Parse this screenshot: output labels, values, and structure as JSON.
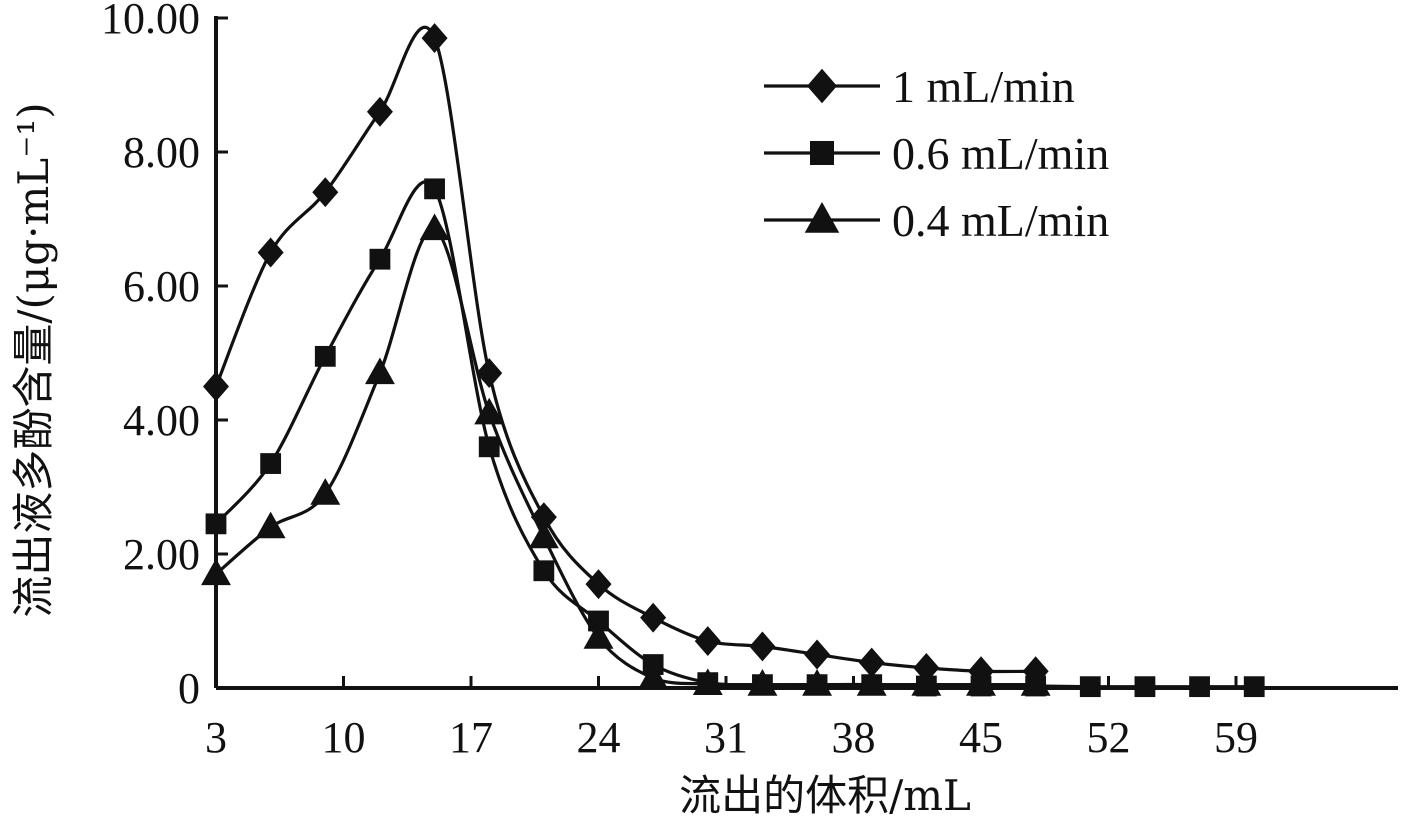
{
  "chart_data": {
    "type": "line",
    "title": "",
    "xlabel": "流出的体积/mL",
    "ylabel": "流出液多酚含量/(μg·mL⁻¹)",
    "xlim": [
      3,
      65
    ],
    "ylim": [
      0,
      10
    ],
    "x_ticks": [
      "3",
      "10",
      "17",
      "24",
      "31",
      "38",
      "45",
      "52",
      "59"
    ],
    "x_tick_values": [
      3,
      10,
      17,
      24,
      31,
      38,
      45,
      52,
      59
    ],
    "y_ticks": [
      "0",
      "2.00",
      "4.00",
      "6.00",
      "8.00",
      "10.00"
    ],
    "y_tick_values": [
      0,
      2,
      4,
      6,
      8,
      10
    ],
    "grid": false,
    "legend_position": "top-right",
    "line_color": "#111111",
    "series": [
      {
        "name": "1 mL/min",
        "marker": "diamond",
        "x": [
          3,
          6,
          9,
          12,
          15,
          18,
          21,
          24,
          27,
          30,
          33,
          36,
          39,
          42,
          45,
          48
        ],
        "y": [
          4.5,
          6.5,
          7.4,
          8.6,
          9.7,
          4.7,
          2.55,
          1.55,
          1.05,
          0.7,
          0.62,
          0.5,
          0.38,
          0.3,
          0.25,
          0.25
        ]
      },
      {
        "name": "0.6 mL/min",
        "marker": "square",
        "x": [
          3,
          6,
          9,
          12,
          15,
          18,
          21,
          24,
          27,
          30,
          33,
          36,
          39,
          42,
          45,
          48,
          51,
          54,
          57,
          60
        ],
        "y": [
          2.45,
          3.35,
          4.95,
          6.4,
          7.45,
          3.6,
          1.75,
          1.0,
          0.35,
          0.08,
          0.05,
          0.05,
          0.05,
          0.03,
          0.03,
          0.03,
          0.02,
          0.02,
          0.02,
          0.02
        ]
      },
      {
        "name": "0.4 mL/min",
        "marker": "triangle",
        "x": [
          3,
          6,
          9,
          12,
          15,
          18,
          21,
          24,
          27,
          30,
          33,
          36,
          39,
          42,
          45,
          48
        ],
        "y": [
          1.7,
          2.4,
          2.9,
          4.7,
          6.85,
          4.1,
          2.25,
          0.75,
          0.15,
          0.06,
          0.05,
          0.05,
          0.05,
          0.05,
          0.05,
          0.05
        ]
      }
    ]
  }
}
